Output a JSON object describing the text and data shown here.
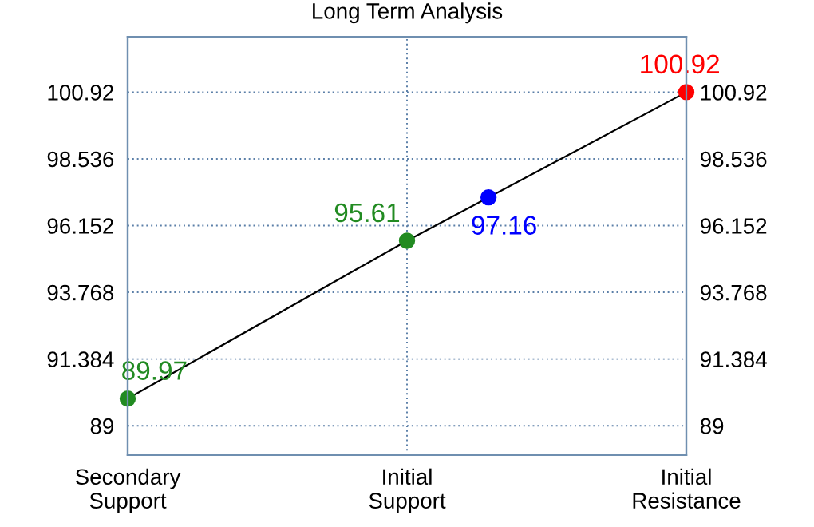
{
  "chart_data": {
    "type": "line",
    "title": "Long Term Analysis",
    "categories": [
      "Secondary\nSupport",
      "Initial\nSupport",
      "Initial\nResistance"
    ],
    "series": [
      {
        "color": "#000000",
        "colors": [
          "#228b22",
          "#228b22",
          "#ff0000"
        ],
        "values": [
          89.97,
          95.61,
          100.92
        ],
        "value_labels": [
          "89.97",
          "95.61",
          "100.92"
        ]
      },
      {
        "type": "scatter",
        "color": "#0000ff",
        "values": [
          null,
          97.16,
          null
        ],
        "value_labels": [
          null,
          "97.16",
          null
        ]
      }
    ],
    "ylim": [
      87.95,
      102.9
    ],
    "yticks": [
      89,
      91.384,
      93.768,
      96.152,
      98.536,
      100.92
    ],
    "y2lim": [
      87.95,
      102.9
    ],
    "y2ticks": [
      89,
      91.384,
      93.768,
      96.152,
      98.536,
      100.92
    ],
    "grid": true,
    "marker": "circle",
    "line_style": "solid"
  }
}
